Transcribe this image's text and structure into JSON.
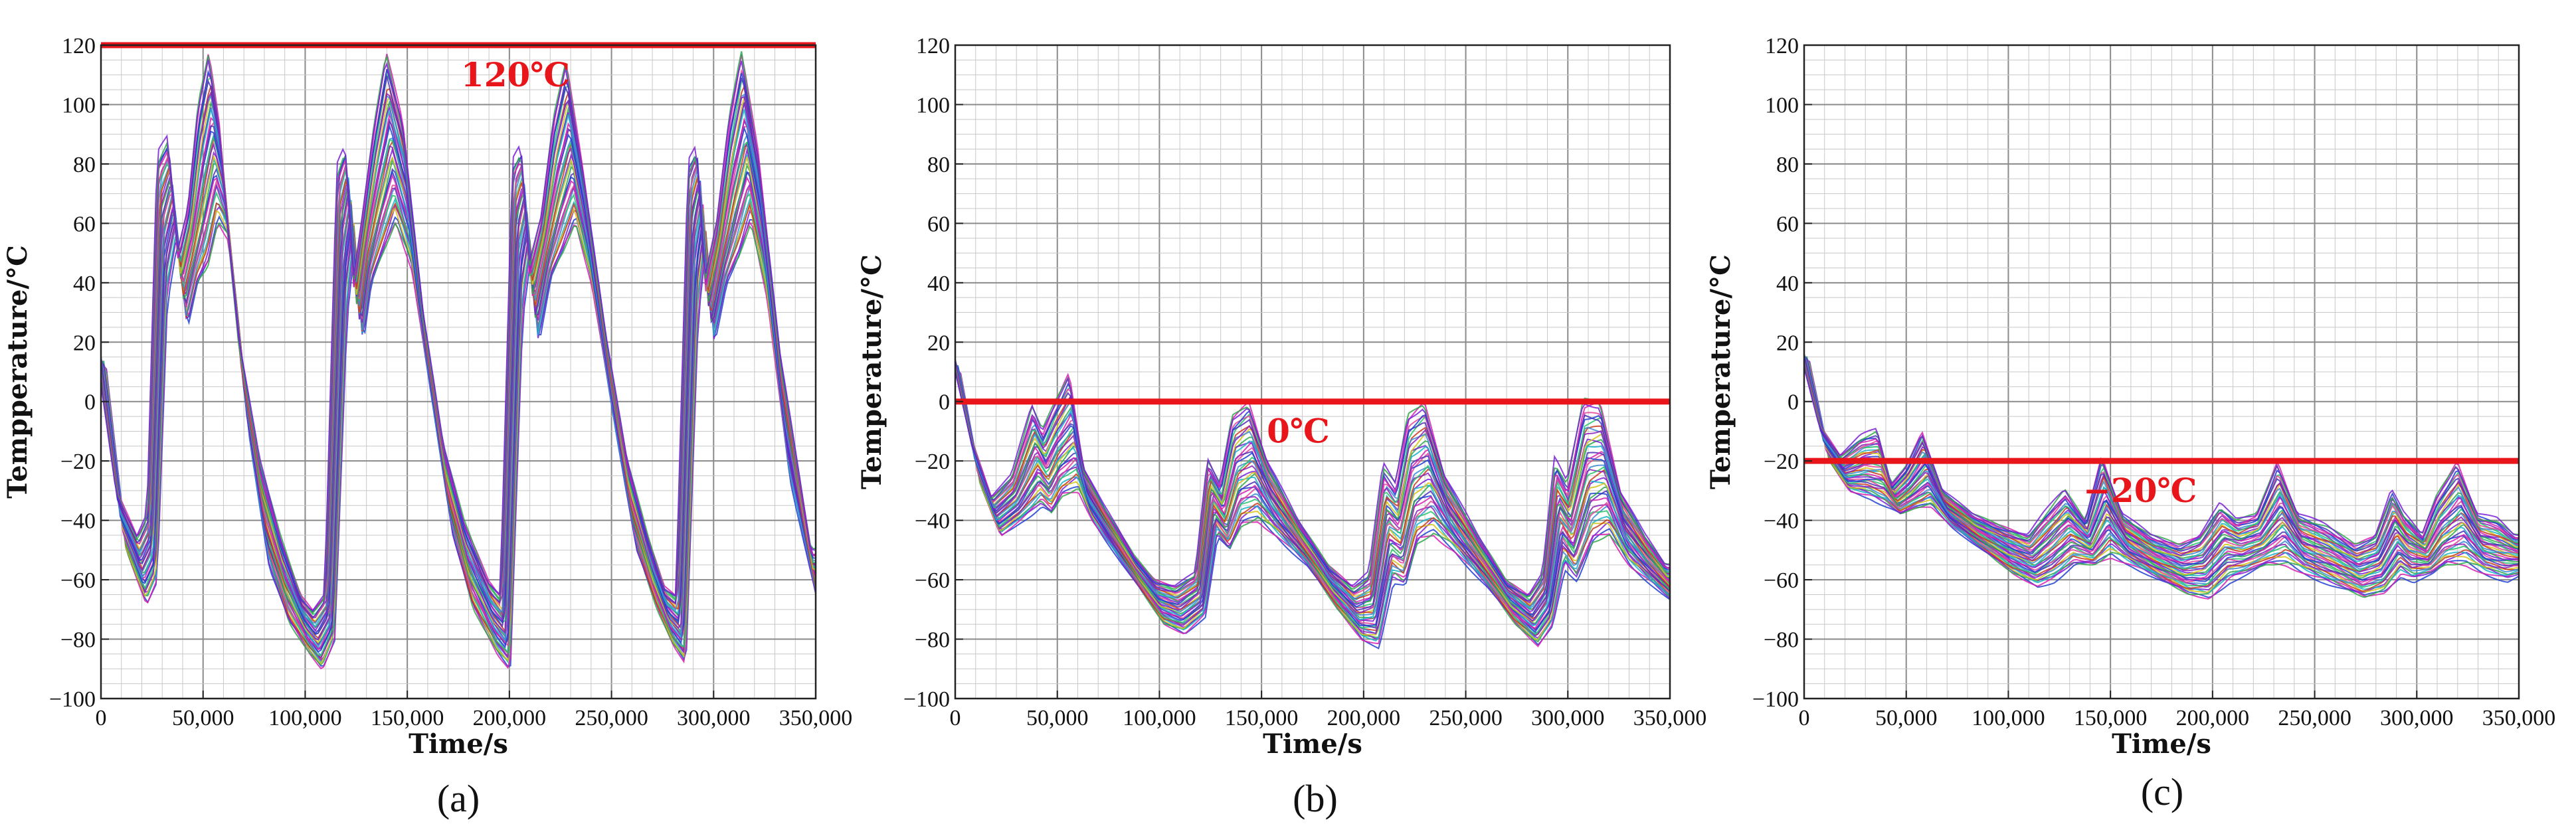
{
  "chart_data": [
    {
      "type": "line",
      "panel_label": "(a)",
      "xlabel": "Time/s",
      "ylabel": "Tempperature/°C",
      "xlim": [
        0,
        350000
      ],
      "ylim": [
        -100,
        120
      ],
      "xticks": [
        "0",
        "50,000",
        "100,000",
        "150,000",
        "200,000",
        "250,000",
        "300,000",
        "350,000"
      ],
      "yticks": [
        "−100",
        "−80",
        "−60",
        "−40",
        "−20",
        "0",
        "20",
        "40",
        "60",
        "80",
        "100",
        "120"
      ],
      "grid": true,
      "threshold": {
        "value": 120,
        "label": "120℃",
        "color": "#e8161b"
      },
      "pattern": {
        "x": [
          0,
          10000,
          20000,
          25000,
          30000,
          35000,
          40000,
          45000,
          50000,
          55000,
          60000,
          65000,
          70000,
          80000,
          90000,
          100000,
          106000,
          112000,
          118000,
          122000,
          126000,
          130000,
          136000,
          142000,
          150000,
          160000,
          170000,
          180000,
          192000,
          198000,
          204000,
          208000,
          212000,
          218000,
          224000,
          230000,
          238000,
          250000,
          260000,
          270000,
          278000,
          284000,
          290000,
          294000,
          298000,
          304000,
          310000,
          316000,
          324000,
          335000,
          350000
        ],
        "upper": [
          18,
          -30,
          -45,
          -38,
          82,
          88,
          50,
          65,
          100,
          118,
          95,
          55,
          20,
          -20,
          -45,
          -65,
          -70,
          -65,
          78,
          85,
          40,
          60,
          92,
          118,
          95,
          30,
          -15,
          -40,
          -60,
          -65,
          80,
          85,
          45,
          62,
          95,
          115,
          80,
          20,
          -20,
          -45,
          -62,
          -65,
          80,
          85,
          40,
          60,
          95,
          118,
          85,
          15,
          -50
        ],
        "lower": [
          12,
          -50,
          -68,
          -60,
          35,
          55,
          25,
          40,
          45,
          60,
          55,
          25,
          -10,
          -55,
          -75,
          -85,
          -90,
          -80,
          30,
          55,
          20,
          40,
          50,
          60,
          45,
          0,
          -45,
          -70,
          -85,
          -90,
          30,
          50,
          20,
          42,
          50,
          60,
          40,
          -10,
          -50,
          -70,
          -82,
          -88,
          30,
          55,
          20,
          40,
          48,
          60,
          35,
          -25,
          -72
        ]
      }
    },
    {
      "type": "line",
      "panel_label": "(b)",
      "xlabel": "Time/s",
      "ylabel": "Temperature/°C",
      "xlim": [
        0,
        350000
      ],
      "ylim": [
        -100,
        120
      ],
      "xticks": [
        "0",
        "50,000",
        "100,000",
        "150,000",
        "200,000",
        "250,000",
        "300,000",
        "350,000"
      ],
      "yticks": [
        "−100",
        "−80",
        "−60",
        "−40",
        "−20",
        "0",
        "20",
        "40",
        "60",
        "80",
        "100",
        "120"
      ],
      "grid": true,
      "threshold": {
        "value": 0,
        "label": "0℃",
        "color": "#e8161b"
      },
      "pattern": {
        "x": [
          0,
          10000,
          20000,
          30000,
          40000,
          45000,
          50000,
          58000,
          65000,
          75000,
          90000,
          100000,
          110000,
          120000,
          126000,
          132000,
          138000,
          146000,
          155000,
          170000,
          185000,
          197000,
          205000,
          212000,
          218000,
          224000,
          232000,
          242000,
          258000,
          272000,
          283000,
          290000,
          296000,
          302000,
          310000,
          318000,
          328000,
          340000,
          350000
        ],
        "upper": [
          18,
          -12,
          -32,
          -25,
          -2,
          -10,
          -2,
          10,
          -22,
          -35,
          -52,
          -60,
          -62,
          -58,
          -20,
          -28,
          -5,
          0,
          -20,
          -40,
          -55,
          -62,
          -58,
          -22,
          -28,
          -5,
          0,
          -25,
          -45,
          -60,
          -65,
          -58,
          -20,
          -28,
          0,
          0,
          -30,
          -45,
          -55
        ],
        "lower": [
          10,
          -28,
          -45,
          -40,
          -35,
          -38,
          -32,
          -30,
          -40,
          -50,
          -65,
          -75,
          -78,
          -72,
          -45,
          -50,
          -42,
          -40,
          -45,
          -55,
          -70,
          -80,
          -82,
          -60,
          -62,
          -48,
          -45,
          -50,
          -62,
          -75,
          -82,
          -75,
          -55,
          -60,
          -48,
          -45,
          -55,
          -62,
          -68
        ]
      }
    },
    {
      "type": "line",
      "panel_label": "(c)",
      "xlabel": "Time/s",
      "ylabel": "Temperature/°C",
      "xlim": [
        0,
        350000
      ],
      "ylim": [
        -100,
        120
      ],
      "xticks": [
        "0",
        "50,000",
        "100,000",
        "150,000",
        "200,000",
        "250,000",
        "300,000",
        "350,000"
      ],
      "yticks": [
        "−100",
        "−80",
        "−60",
        "−40",
        "−20",
        "0",
        "20",
        "40",
        "60",
        "80",
        "100",
        "120"
      ],
      "grid": true,
      "threshold": {
        "value": -20,
        "label": "−20℃",
        "color": "#e8161b"
      },
      "pattern": {
        "x": [
          0,
          10000,
          20000,
          30000,
          38000,
          45000,
          52000,
          60000,
          70000,
          85000,
          100000,
          112000,
          120000,
          130000,
          140000,
          148000,
          158000,
          172000,
          186000,
          196000,
          206000,
          214000,
          224000,
          234000,
          244000,
          258000,
          272000,
          282000,
          290000,
          296000,
          305000,
          312000,
          322000,
          332000,
          342000,
          350000
        ],
        "upper": [
          18,
          -8,
          -18,
          -12,
          -10,
          -28,
          -22,
          -10,
          -30,
          -38,
          -42,
          -45,
          -38,
          -30,
          -40,
          -18,
          -38,
          -45,
          -48,
          -45,
          -35,
          -40,
          -38,
          -20,
          -38,
          -42,
          -48,
          -45,
          -30,
          -38,
          -45,
          -32,
          -20,
          -38,
          -40,
          -45
        ],
        "lower": [
          14,
          -20,
          -30,
          -32,
          -35,
          -38,
          -36,
          -35,
          -42,
          -50,
          -58,
          -62,
          -60,
          -55,
          -55,
          -52,
          -55,
          -60,
          -65,
          -66,
          -60,
          -58,
          -55,
          -55,
          -58,
          -62,
          -66,
          -64,
          -58,
          -60,
          -58,
          -55,
          -55,
          -58,
          -60,
          -58
        ]
      }
    }
  ]
}
